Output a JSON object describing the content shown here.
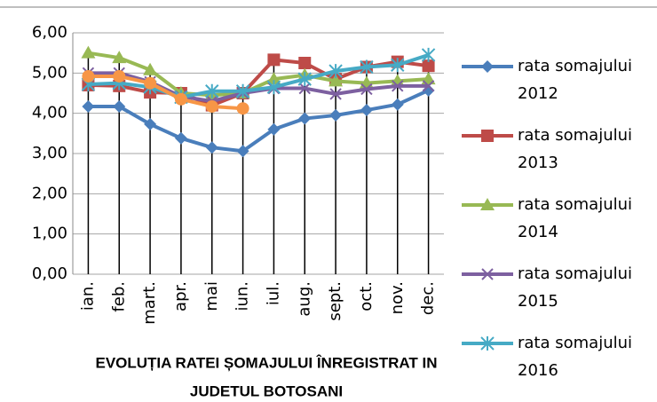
{
  "chart_data": {
    "type": "line",
    "title": [
      "EVOLUȚIA RATEI ȘOMAJULUI ÎNREGISTRAT IN",
      "JUDETUL BOTOSANI"
    ],
    "categories": [
      "ian.",
      "feb.",
      "mart.",
      "apr.",
      "mai",
      "iun.",
      "iul.",
      "aug.",
      "sept.",
      "oct.",
      "nov.",
      "dec."
    ],
    "series": [
      {
        "name": "rata somajului 2012",
        "color": "#4a7ebb",
        "marker": "diamond",
        "values": [
          4.17,
          4.17,
          3.73,
          3.38,
          3.15,
          3.06,
          3.6,
          3.87,
          3.95,
          4.08,
          4.22,
          4.57
        ]
      },
      {
        "name": "rata somajului 2013",
        "color": "#be4b48",
        "marker": "square",
        "values": [
          4.7,
          4.68,
          4.52,
          4.5,
          4.2,
          4.5,
          5.33,
          5.25,
          4.85,
          5.15,
          5.28,
          5.18
        ]
      },
      {
        "name": "rata somajului 2014",
        "color": "#98b954",
        "marker": "triangle",
        "values": [
          5.5,
          5.38,
          5.08,
          4.5,
          4.45,
          4.5,
          4.85,
          4.95,
          4.8,
          4.75,
          4.8,
          4.85
        ]
      },
      {
        "name": "rata somajului 2015",
        "color": "#7d60a0",
        "marker": "x",
        "values": [
          5.0,
          5.0,
          4.78,
          4.42,
          4.3,
          4.5,
          4.62,
          4.62,
          4.48,
          4.6,
          4.68,
          4.68
        ]
      },
      {
        "name": "rata somajului 2016",
        "color": "#46aac5",
        "marker": "star",
        "values": [
          4.72,
          4.75,
          4.65,
          4.4,
          4.55,
          4.55,
          4.65,
          4.85,
          5.05,
          5.15,
          5.2,
          5.45
        ]
      },
      {
        "color": "#f79646",
        "marker": "circle",
        "values": [
          4.92,
          4.92,
          4.75,
          4.35,
          4.17,
          4.12,
          null,
          null,
          null,
          null,
          null,
          null
        ]
      }
    ],
    "ylim": [
      0,
      6
    ],
    "yticks": [
      {
        "value": 0,
        "label": "0,00"
      },
      {
        "value": 1,
        "label": "1,00"
      },
      {
        "value": 2,
        "label": "2,00"
      },
      {
        "value": 3,
        "label": "3,00"
      },
      {
        "value": 4,
        "label": "4,00"
      },
      {
        "value": 5,
        "label": "5,00"
      },
      {
        "value": 6,
        "label": "6,00"
      }
    ],
    "grid": true,
    "drop_lines": true,
    "legend": "right"
  }
}
